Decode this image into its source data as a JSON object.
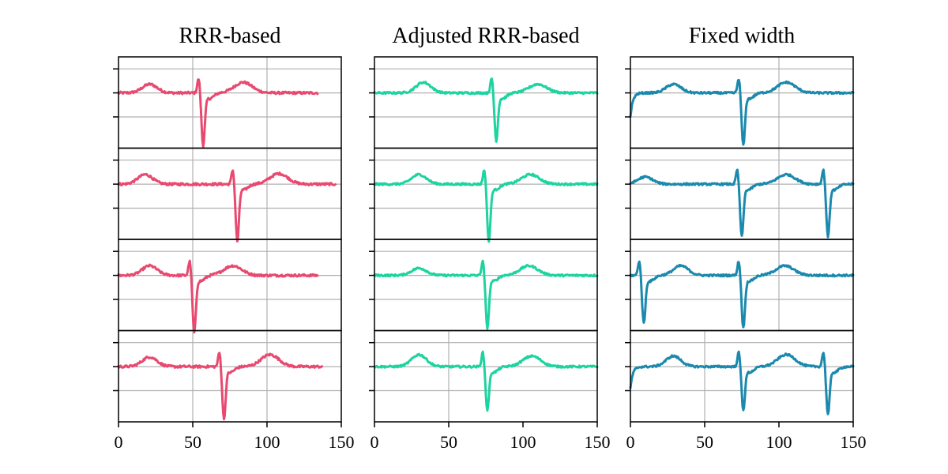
{
  "chart_data": {
    "type": "line",
    "layout": "4 rows x 3 columns of small-multiple line plots",
    "xlim": [
      0,
      150
    ],
    "ylim": [
      -1.15,
      0.75
    ],
    "x_ticks": [
      0,
      50,
      100,
      150
    ],
    "x_tick_labels": [
      "0",
      "50",
      "100",
      "150"
    ],
    "y_ticks": [
      0.5,
      0,
      -0.5
    ],
    "y_tick_labels": false,
    "grid": true,
    "legend": "none",
    "columns": [
      {
        "title": "RRR-based",
        "color": "#e8496f",
        "x_gridlines": [
          50,
          100
        ],
        "rows": [
          {
            "length": 134,
            "r_peaks": [
              {
                "x": 57,
                "depth": -0.55
              }
            ],
            "p_waves": [
              {
                "x": 21,
                "h": 0.18
              }
            ],
            "t_waves": [
              {
                "x": 84,
                "h": 0.22
              }
            ],
            "noise": 0.012
          },
          {
            "length": 146,
            "r_peaks": [
              {
                "x": 80,
                "depth": -0.6
              }
            ],
            "p_waves": [
              {
                "x": 18,
                "h": 0.2
              }
            ],
            "t_waves": [
              {
                "x": 108,
                "h": 0.22
              }
            ],
            "noise": 0.012
          },
          {
            "length": 134,
            "r_peaks": [
              {
                "x": 51,
                "depth": -0.6
              }
            ],
            "p_waves": [
              {
                "x": 21,
                "h": 0.2
              }
            ],
            "t_waves": [
              {
                "x": 77,
                "h": 0.2
              }
            ],
            "noise": 0.012
          },
          {
            "length": 137,
            "r_peaks": [
              {
                "x": 71,
                "depth": -0.55
              }
            ],
            "p_waves": [
              {
                "x": 21,
                "h": 0.2
              }
            ],
            "t_waves": [
              {
                "x": 102,
                "h": 0.25
              }
            ],
            "noise": 0.012
          }
        ]
      },
      {
        "title": "Adjusted RRR-based",
        "color": "#1dd39f",
        "x_gridlines": [],
        "rows": [
          {
            "length": 150,
            "r_peaks": [
              {
                "x": 82,
                "depth": -0.5
              }
            ],
            "p_waves": [
              {
                "x": 33,
                "h": 0.22
              }
            ],
            "t_waves": [
              {
                "x": 110,
                "h": 0.18
              }
            ],
            "noise": 0.01
          },
          {
            "length": 150,
            "r_peaks": [
              {
                "x": 77,
                "depth": -0.6
              }
            ],
            "p_waves": [
              {
                "x": 30,
                "h": 0.2
              }
            ],
            "t_waves": [
              {
                "x": 105,
                "h": 0.2
              }
            ],
            "noise": 0.01
          },
          {
            "length": 150,
            "r_peaks": [
              {
                "x": 76,
                "depth": -0.55
              }
            ],
            "p_waves": [
              {
                "x": 30,
                "h": 0.15
              }
            ],
            "t_waves": [
              {
                "x": 104,
                "h": 0.2
              }
            ],
            "noise": 0.01
          },
          {
            "length": 150,
            "r_peaks": [
              {
                "x": 76,
                "depth": -0.45
              }
            ],
            "p_waves": [
              {
                "x": 30,
                "h": 0.25
              }
            ],
            "t_waves": [
              {
                "x": 106,
                "h": 0.22
              }
            ],
            "noise": 0.01
          }
        ],
        "x_gridlines_row4": [
          50
        ]
      },
      {
        "title": "Fixed width",
        "color": "#1a89ad",
        "x_gridlines": [
          100
        ],
        "rows": [
          {
            "length": 150,
            "start_dip": -0.5,
            "r_peaks": [
              {
                "x": 76,
                "depth": -0.55
              }
            ],
            "p_waves": [
              {
                "x": 29,
                "h": 0.18
              }
            ],
            "t_waves": [
              {
                "x": 105,
                "h": 0.22
              }
            ],
            "noise": 0.01
          },
          {
            "length": 150,
            "r_peaks": [
              {
                "x": 75,
                "depth": -0.55
              },
              {
                "x": 133,
                "depth": -0.55
              }
            ],
            "p_waves": [
              {
                "x": 10,
                "h": 0.15
              }
            ],
            "t_waves": [
              {
                "x": 105,
                "h": 0.2
              }
            ],
            "noise": 0.01
          },
          {
            "length": 150,
            "r_peaks": [
              {
                "x": 9,
                "depth": -0.5
              },
              {
                "x": 76,
                "depth": -0.55
              }
            ],
            "p_waves": [
              {
                "x": 34,
                "h": 0.2
              }
            ],
            "t_waves": [
              {
                "x": 104,
                "h": 0.2
              }
            ],
            "noise": 0.01
          },
          {
            "length": 150,
            "start_dip": -0.45,
            "r_peaks": [
              {
                "x": 76,
                "depth": -0.45
              },
              {
                "x": 133,
                "depth": -0.5
              }
            ],
            "p_waves": [
              {
                "x": 29,
                "h": 0.22
              }
            ],
            "t_waves": [
              {
                "x": 105,
                "h": 0.25
              }
            ],
            "noise": 0.01
          }
        ],
        "x_gridlines_row4": [
          50
        ]
      }
    ]
  }
}
